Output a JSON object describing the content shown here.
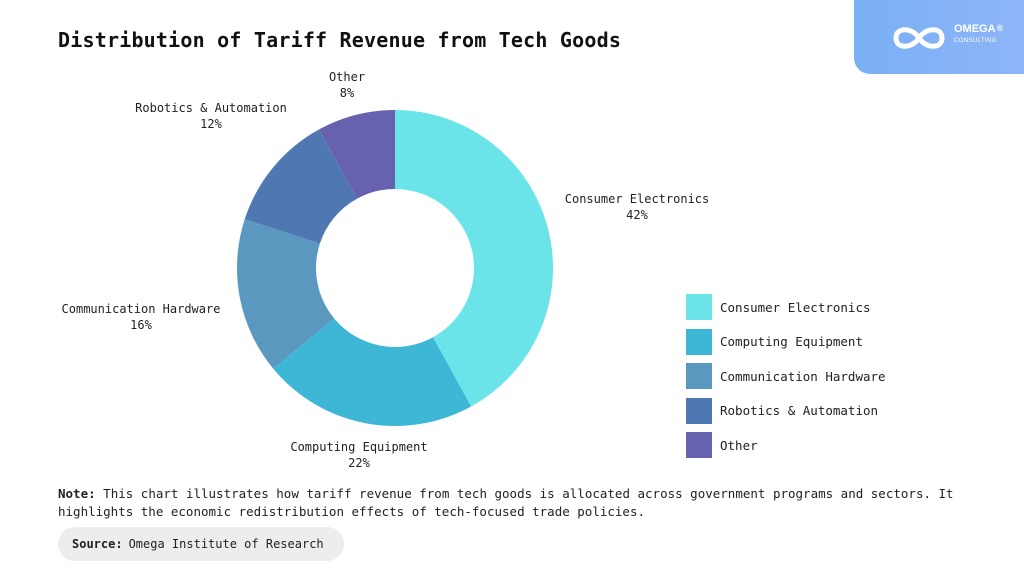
{
  "header": {
    "title": "Distribution of Tariff Revenue from Tech Goods"
  },
  "logo": {
    "icon": "infinity-icon",
    "name": "OMEGA",
    "registered": "®",
    "tagline": "CONSULTING"
  },
  "chart_data": {
    "type": "pie",
    "donut": true,
    "title": "Distribution of Tariff Revenue from Tech Goods",
    "unit": "%",
    "categories": [
      "Consumer Electronics",
      "Computing Equipment",
      "Communication Hardware",
      "Robotics & Automation",
      "Other"
    ],
    "values": [
      42,
      22,
      16,
      12,
      8
    ],
    "colors": [
      "#6ae4e8",
      "#3eb7d6",
      "#5a98c0",
      "#4f78b3",
      "#6762b0"
    ],
    "legend": "right"
  },
  "note": {
    "label": "Note:",
    "text": "This chart illustrates how tariff revenue from tech goods is allocated across government programs and sectors. It highlights the economic redistribution effects of tech-focused trade policies."
  },
  "source": {
    "label": "Source:",
    "text": "Omega Institute of Research"
  }
}
